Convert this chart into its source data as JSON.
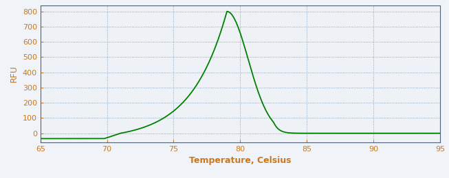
{
  "title": "",
  "xlabel": "Temperature, Celsius",
  "ylabel": "RFU",
  "xlim": [
    65,
    95
  ],
  "ylim": [
    -60,
    840
  ],
  "xticks": [
    65,
    70,
    75,
    80,
    85,
    90,
    95
  ],
  "yticks": [
    0,
    100,
    200,
    300,
    400,
    500,
    600,
    700,
    800
  ],
  "line_color": "#008000",
  "line_width": 1.3,
  "background_color": "#f0f4f8",
  "plot_bg_color": "#eef2f7",
  "grid_color": "#7090b0",
  "grid_dot_size": 0.6,
  "tick_color": "#c87820",
  "label_color": "#c87820",
  "spine_color": "#506070",
  "peak_temp": 79.0,
  "peak_value": 800,
  "rise_start": 71.0,
  "xlabel_fontsize": 9,
  "ylabel_fontsize": 9,
  "tick_fontsize": 8,
  "xlabel_bold": true
}
